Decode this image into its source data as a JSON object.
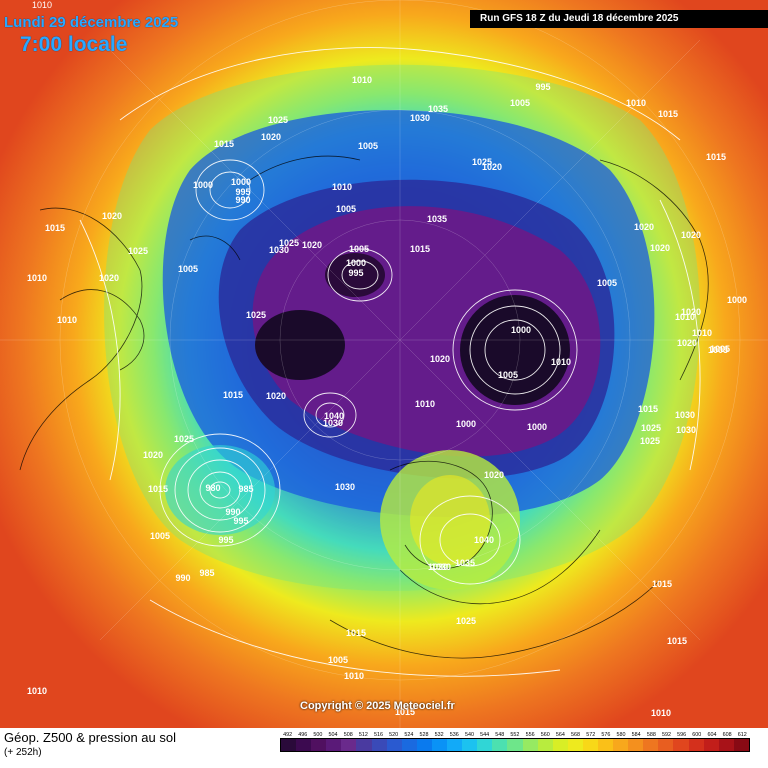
{
  "header": {
    "date": "Lundi 29 décembre 2025",
    "time": "7:00 locale",
    "run": "Run GFS 18 Z du Jeudi 18 décembre 2025",
    "corner_label": "1010"
  },
  "footer": {
    "title": "Géop. Z500 & pression au sol",
    "subtitle": "(+ 252h)",
    "copyright": "Copyright © 2025 Meteociel.fr"
  },
  "map": {
    "projection": "polar-stereographic-north",
    "field": "500 hPa geopotential height (dam)",
    "contours": "sea-level pressure (hPa)",
    "lows": [
      "1000",
      "1000",
      "980",
      "1000"
    ],
    "highs": [
      "1040",
      "1040",
      "1035"
    ],
    "isobar_labels": [
      "1010",
      "1005",
      "995",
      "1005",
      "1010",
      "1015",
      "1025",
      "1020",
      "1015",
      "1000",
      "1000",
      "995",
      "990",
      "1020",
      "1015",
      "1025",
      "1005",
      "1025",
      "1020",
      "1010",
      "1010",
      "1030",
      "1025",
      "1020",
      "1000",
      "995",
      "1005",
      "1035",
      "1035",
      "1030",
      "1005",
      "1025",
      "1020",
      "1010",
      "1020",
      "1015",
      "1020",
      "1000",
      "1005",
      "1005",
      "1010",
      "1040",
      "1020",
      "1030",
      "1015",
      "980",
      "985",
      "990",
      "995",
      "995",
      "985",
      "990",
      "1000",
      "1010",
      "1040",
      "1030",
      "1035",
      "1020",
      "1020",
      "1005",
      "1015",
      "1005",
      "1010",
      "1015",
      "1020",
      "1025",
      "1025",
      "1030",
      "1030",
      "1030",
      "1000",
      "1010",
      "1005",
      "1025",
      "1015",
      "1015",
      "1010",
      "1000",
      "1015",
      "1010",
      "1010",
      "1020",
      "1020",
      "1020",
      "1025",
      "1015",
      "1030",
      "1005",
      "1015"
    ]
  },
  "legend": {
    "values": [
      "492",
      "496",
      "500",
      "504",
      "508",
      "512",
      "516",
      "520",
      "524",
      "528",
      "532",
      "536",
      "540",
      "544",
      "548",
      "552",
      "556",
      "560",
      "564",
      "568",
      "572",
      "576",
      "580",
      "584",
      "588",
      "592",
      "596",
      "600",
      "604",
      "608",
      "612"
    ],
    "colors": [
      "#2a0a3a",
      "#3c0a50",
      "#501060",
      "#5a1a78",
      "#6a2a8c",
      "#4a3aa0",
      "#3a4ab8",
      "#2a5ad0",
      "#1a6ae0",
      "#0a7aee",
      "#0a92f6",
      "#12aaf8",
      "#1cc2f0",
      "#30d6d6",
      "#4ce0b0",
      "#6ee68a",
      "#96ea62",
      "#b8ec3e",
      "#d8ee26",
      "#eeea1e",
      "#f8d818",
      "#fac018",
      "#f8a81c",
      "#f4901e",
      "#ee7620",
      "#e85e20",
      "#e0461e",
      "#d4301c",
      "#c21e1a",
      "#a81218",
      "#880a14"
    ]
  }
}
